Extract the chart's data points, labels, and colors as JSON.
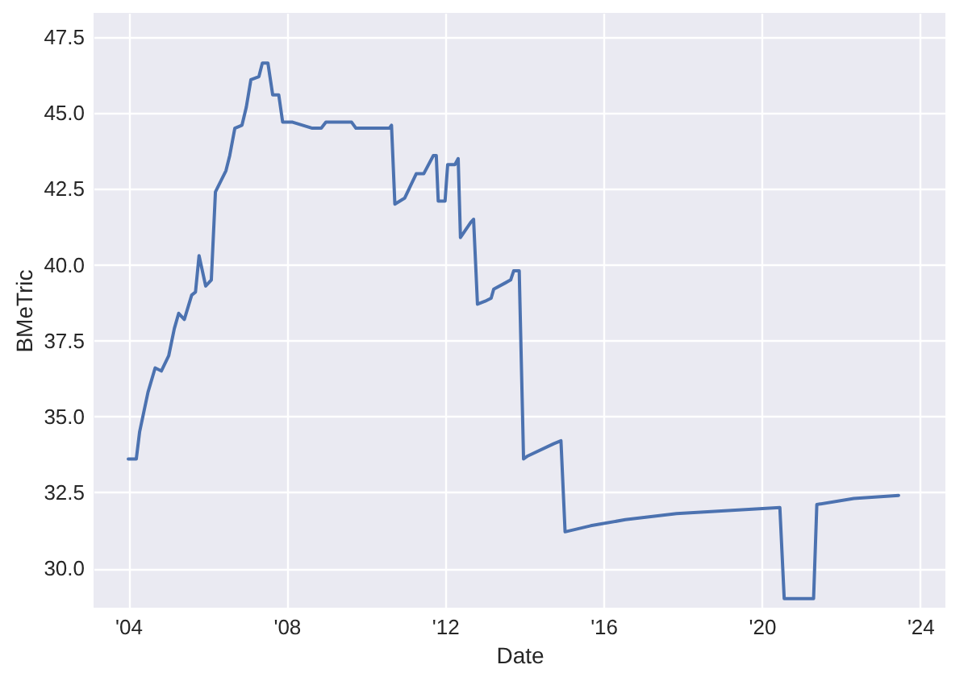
{
  "chart_data": {
    "type": "line",
    "xlabel": "Date",
    "ylabel": "BMeTric",
    "x": [
      "2004-01-01",
      "2004-03-15",
      "2004-04-15",
      "2004-07-01",
      "2004-09-05",
      "2004-11-01",
      "2005-01-08",
      "2005-03-01",
      "2005-04-10",
      "2005-06-01",
      "2005-08-08",
      "2005-09-12",
      "2005-10-15",
      "2005-12-15",
      "2006-02-05",
      "2006-03-15",
      "2006-06-20",
      "2006-07-25",
      "2006-09-10",
      "2006-11-15",
      "2006-12-25",
      "2007-02-05",
      "2007-04-20",
      "2007-05-22",
      "2007-07-12",
      "2007-08-25",
      "2007-10-20",
      "2007-11-25",
      "2008-02-25",
      "2008-08-25",
      "2008-11-15",
      "2008-12-28",
      "2009-08-22",
      "2009-10-01",
      "2010-08-05",
      "2010-08-25",
      "2010-09-25",
      "2010-12-25",
      "2011-04-10",
      "2011-06-18",
      "2011-09-15",
      "2011-10-12",
      "2011-10-30",
      "2012-01-01",
      "2012-01-25",
      "2012-04-01",
      "2012-05-01",
      "2012-05-22",
      "2012-08-25",
      "2012-09-20",
      "2012-10-26",
      "2013-01-05",
      "2013-03-01",
      "2013-03-25",
      "2013-07-08",
      "2013-08-28",
      "2013-09-25",
      "2013-11-15",
      "2013-12-25",
      "2014-02-02",
      "2014-09-28",
      "2014-12-05",
      "2015-01-12",
      "2015-09-05",
      "2016-07-20",
      "2017-11-05",
      "2019-02-25",
      "2020-06-15",
      "2020-07-25",
      "2021-04-22",
      "2021-05-22",
      "2022-04-28",
      "2023-06-15"
    ],
    "series": [
      {
        "color": "#4c72b0",
        "values": [
          33.6,
          33.6,
          34.5,
          35.8,
          36.6,
          36.5,
          37.0,
          37.9,
          38.4,
          38.2,
          39.0,
          39.1,
          40.3,
          39.3,
          39.5,
          42.4,
          43.1,
          43.6,
          44.5,
          44.6,
          45.2,
          46.1,
          46.2,
          46.65,
          46.65,
          45.6,
          45.6,
          44.7,
          44.7,
          44.5,
          44.5,
          44.7,
          44.7,
          44.5,
          44.5,
          44.6,
          42.0,
          42.2,
          43.0,
          43.0,
          43.6,
          43.6,
          42.1,
          42.1,
          43.3,
          43.3,
          43.5,
          40.9,
          41.4,
          41.5,
          38.7,
          38.8,
          38.9,
          39.2,
          39.4,
          39.5,
          39.8,
          39.8,
          33.6,
          33.7,
          34.1,
          34.2,
          31.2,
          31.4,
          31.6,
          31.8,
          31.9,
          32.0,
          29.0,
          29.0,
          32.1,
          32.3,
          32.4
        ]
      }
    ],
    "xlim": [
      "2003-02-15",
      "2024-08-20"
    ],
    "xticks": [
      {
        "value": "2004",
        "label": "'04"
      },
      {
        "value": "2008",
        "label": "'08"
      },
      {
        "value": "2012",
        "label": "'12"
      },
      {
        "value": "2016",
        "label": "'16"
      },
      {
        "value": "2020",
        "label": "'20"
      },
      {
        "value": "2024",
        "label": "'24"
      }
    ],
    "ylim": [
      28.7,
      48.3
    ],
    "yticks": [
      {
        "value": 30,
        "label": "30.0"
      },
      {
        "value": 32.5,
        "label": "32.5"
      },
      {
        "value": 35,
        "label": "35.0"
      },
      {
        "value": 37.5,
        "label": "37.5"
      },
      {
        "value": 40,
        "label": "40.0"
      },
      {
        "value": 42.5,
        "label": "42.5"
      },
      {
        "value": 45,
        "label": "45.0"
      },
      {
        "value": 47.5,
        "label": "47.5"
      }
    ],
    "grid": true,
    "marker": "none",
    "line_style": "solid"
  }
}
